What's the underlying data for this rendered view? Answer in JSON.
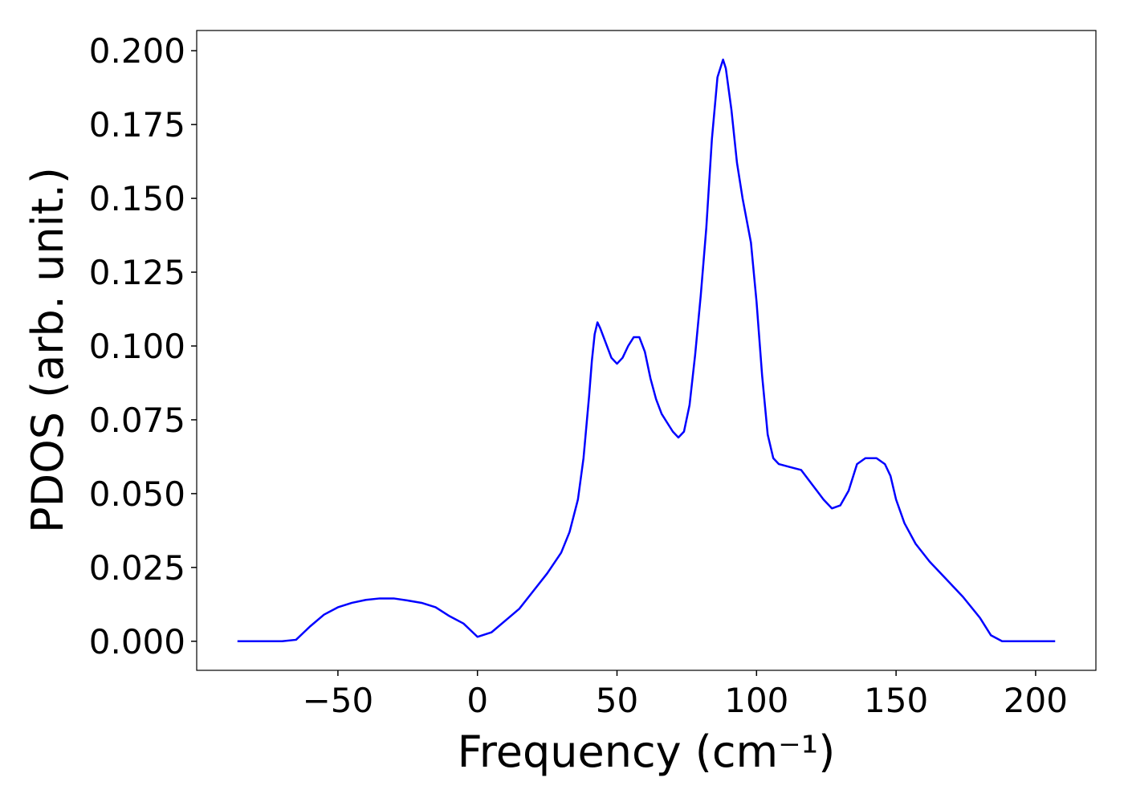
{
  "chart_data": {
    "type": "line",
    "xlabel": "Frequency (cm⁻¹)",
    "ylabel": "PDOS (arb. unit.)",
    "x": [
      -86,
      -70,
      -65,
      -60,
      -55,
      -50,
      -45,
      -40,
      -35,
      -30,
      -25,
      -20,
      -15,
      -10,
      -5,
      0,
      5,
      10,
      15,
      20,
      25,
      30,
      33,
      36,
      38,
      40,
      41,
      42,
      43,
      44,
      46,
      48,
      50,
      52,
      54,
      56,
      58,
      60,
      62,
      64,
      66,
      68,
      70,
      72,
      74,
      76,
      78,
      80,
      82,
      84,
      86,
      88,
      89,
      91,
      93,
      95,
      98,
      100,
      102,
      104,
      106,
      108,
      112,
      116,
      120,
      124,
      127,
      130,
      133,
      136,
      139,
      143,
      146,
      148,
      150,
      153,
      157,
      162,
      168,
      174,
      180,
      184,
      188,
      195,
      207
    ],
    "series": [
      {
        "name": "PDOS",
        "color": "#0000ff",
        "values": [
          0,
          0,
          0.0005,
          0.005,
          0.009,
          0.0115,
          0.013,
          0.014,
          0.0145,
          0.0145,
          0.0138,
          0.013,
          0.0115,
          0.0085,
          0.006,
          0.0015,
          0.003,
          0.007,
          0.011,
          0.017,
          0.023,
          0.03,
          0.037,
          0.048,
          0.062,
          0.083,
          0.095,
          0.104,
          0.108,
          0.106,
          0.101,
          0.096,
          0.094,
          0.096,
          0.1,
          0.103,
          0.103,
          0.098,
          0.089,
          0.082,
          0.077,
          0.074,
          0.071,
          0.069,
          0.071,
          0.08,
          0.097,
          0.117,
          0.14,
          0.17,
          0.191,
          0.197,
          0.194,
          0.18,
          0.162,
          0.15,
          0.135,
          0.115,
          0.09,
          0.07,
          0.062,
          0.06,
          0.059,
          0.058,
          0.053,
          0.048,
          0.045,
          0.046,
          0.051,
          0.06,
          0.062,
          0.062,
          0.06,
          0.056,
          0.048,
          0.04,
          0.033,
          0.027,
          0.021,
          0.015,
          0.008,
          0.002,
          0,
          0,
          0
        ]
      }
    ],
    "xlim": [
      -100.6,
      221.6
    ],
    "ylim": [
      -0.00985,
      0.20685
    ],
    "xticks": [
      {
        "value": -50,
        "label": "−50"
      },
      0,
      50,
      100,
      150,
      200
    ],
    "yticks": [
      {
        "value": 0,
        "label": "0.000"
      },
      {
        "value": 0.025,
        "label": "0.025"
      },
      {
        "value": 0.05,
        "label": "0.050"
      },
      {
        "value": 0.075,
        "label": "0.075"
      },
      {
        "value": 0.1,
        "label": "0.100"
      },
      {
        "value": 0.125,
        "label": "0.125"
      },
      {
        "value": 0.15,
        "label": "0.150"
      },
      {
        "value": 0.175,
        "label": "0.175"
      },
      {
        "value": 0.2,
        "label": "0.200"
      }
    ],
    "grid": false
  }
}
